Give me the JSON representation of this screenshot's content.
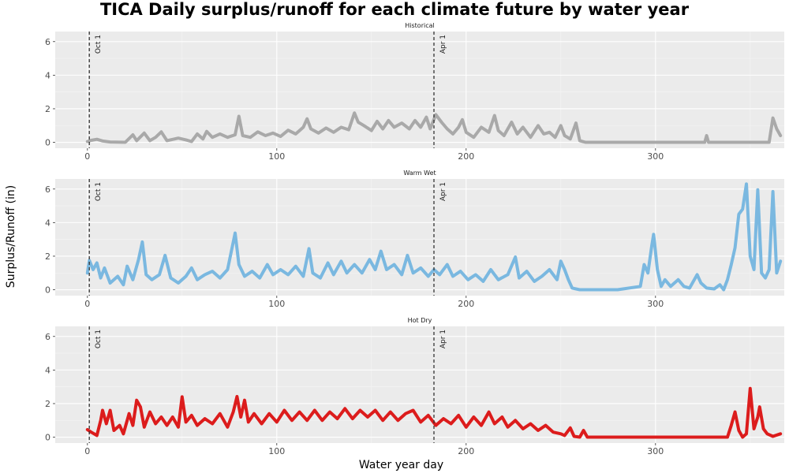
{
  "chart_data": {
    "type": "line",
    "title": "TICA Daily surplus/runoff for each climate future by water year",
    "xlabel": "Water year day",
    "ylabel": "Surplus/Runoff (in)",
    "xlim": [
      -17,
      368
    ],
    "ylim": [
      -0.35,
      6.6
    ],
    "x_ticks": [
      0,
      100,
      200,
      300
    ],
    "y_ticks": [
      0,
      2,
      4,
      6
    ],
    "grid": true,
    "vlines": [
      {
        "x": 1,
        "label": "Oct 1"
      },
      {
        "x": 183,
        "label": "Apr 1"
      }
    ],
    "panels": [
      {
        "name": "Historical",
        "color": "#A9A9A9",
        "points": [
          [
            0,
            0.05
          ],
          [
            2,
            0.12
          ],
          [
            5,
            0.18
          ],
          [
            8,
            0.08
          ],
          [
            12,
            0.02
          ],
          [
            20,
            0
          ],
          [
            24,
            0.45
          ],
          [
            26,
            0.1
          ],
          [
            30,
            0.55
          ],
          [
            33,
            0.1
          ],
          [
            36,
            0.3
          ],
          [
            39,
            0.62
          ],
          [
            42,
            0.1
          ],
          [
            48,
            0.25
          ],
          [
            52,
            0.15
          ],
          [
            55,
            0.05
          ],
          [
            58,
            0.5
          ],
          [
            61,
            0.2
          ],
          [
            63,
            0.65
          ],
          [
            66,
            0.3
          ],
          [
            70,
            0.5
          ],
          [
            74,
            0.3
          ],
          [
            78,
            0.45
          ],
          [
            80,
            1.55
          ],
          [
            82,
            0.4
          ],
          [
            86,
            0.3
          ],
          [
            90,
            0.62
          ],
          [
            94,
            0.4
          ],
          [
            98,
            0.55
          ],
          [
            102,
            0.35
          ],
          [
            106,
            0.72
          ],
          [
            110,
            0.5
          ],
          [
            114,
            0.9
          ],
          [
            116,
            1.4
          ],
          [
            118,
            0.8
          ],
          [
            122,
            0.55
          ],
          [
            126,
            0.85
          ],
          [
            130,
            0.6
          ],
          [
            134,
            0.9
          ],
          [
            138,
            0.75
          ],
          [
            141,
            1.75
          ],
          [
            143,
            1.2
          ],
          [
            146,
            1.0
          ],
          [
            150,
            0.7
          ],
          [
            153,
            1.25
          ],
          [
            156,
            0.8
          ],
          [
            159,
            1.3
          ],
          [
            162,
            0.9
          ],
          [
            166,
            1.15
          ],
          [
            170,
            0.8
          ],
          [
            173,
            1.3
          ],
          [
            176,
            0.9
          ],
          [
            179,
            1.5
          ],
          [
            181,
            0.8
          ],
          [
            184,
            1.65
          ],
          [
            187,
            1.2
          ],
          [
            190,
            0.8
          ],
          [
            193,
            0.5
          ],
          [
            196,
            0.9
          ],
          [
            198,
            1.35
          ],
          [
            200,
            0.6
          ],
          [
            204,
            0.3
          ],
          [
            208,
            0.9
          ],
          [
            212,
            0.6
          ],
          [
            215,
            1.6
          ],
          [
            217,
            0.7
          ],
          [
            220,
            0.4
          ],
          [
            224,
            1.2
          ],
          [
            227,
            0.5
          ],
          [
            230,
            0.9
          ],
          [
            234,
            0.3
          ],
          [
            238,
            1.0
          ],
          [
            241,
            0.5
          ],
          [
            244,
            0.6
          ],
          [
            247,
            0.3
          ],
          [
            250,
            1.0
          ],
          [
            252,
            0.4
          ],
          [
            255,
            0.2
          ],
          [
            258,
            1.15
          ],
          [
            260,
            0.1
          ],
          [
            263,
            0
          ],
          [
            300,
            0
          ],
          [
            326,
            0
          ],
          [
            327,
            0.4
          ],
          [
            328,
            0
          ],
          [
            345,
            0
          ],
          [
            350,
            0
          ],
          [
            360,
            0
          ],
          [
            362,
            1.45
          ],
          [
            364,
            0.8
          ],
          [
            366,
            0.4
          ]
        ]
      },
      {
        "name": "Warm Wet",
        "color": "#7AB8E0",
        "points": [
          [
            0,
            1.0
          ],
          [
            1,
            1.75
          ],
          [
            3,
            1.2
          ],
          [
            5,
            1.6
          ],
          [
            7,
            0.7
          ],
          [
            9,
            1.3
          ],
          [
            12,
            0.4
          ],
          [
            16,
            0.8
          ],
          [
            19,
            0.3
          ],
          [
            21,
            1.4
          ],
          [
            24,
            0.6
          ],
          [
            27,
            1.8
          ],
          [
            29,
            2.85
          ],
          [
            31,
            0.9
          ],
          [
            34,
            0.6
          ],
          [
            38,
            0.9
          ],
          [
            41,
            2.05
          ],
          [
            44,
            0.7
          ],
          [
            48,
            0.4
          ],
          [
            52,
            0.8
          ],
          [
            55,
            1.3
          ],
          [
            58,
            0.6
          ],
          [
            62,
            0.9
          ],
          [
            66,
            1.1
          ],
          [
            70,
            0.7
          ],
          [
            74,
            1.2
          ],
          [
            78,
            3.38
          ],
          [
            80,
            1.5
          ],
          [
            83,
            0.8
          ],
          [
            87,
            1.1
          ],
          [
            91,
            0.7
          ],
          [
            95,
            1.5
          ],
          [
            98,
            0.9
          ],
          [
            102,
            1.2
          ],
          [
            106,
            0.9
          ],
          [
            110,
            1.4
          ],
          [
            114,
            0.8
          ],
          [
            117,
            2.45
          ],
          [
            119,
            1.0
          ],
          [
            123,
            0.7
          ],
          [
            127,
            1.6
          ],
          [
            130,
            0.9
          ],
          [
            134,
            1.7
          ],
          [
            137,
            1.0
          ],
          [
            141,
            1.5
          ],
          [
            145,
            1.0
          ],
          [
            149,
            1.8
          ],
          [
            152,
            1.2
          ],
          [
            155,
            2.3
          ],
          [
            158,
            1.2
          ],
          [
            162,
            1.5
          ],
          [
            166,
            0.9
          ],
          [
            169,
            2.05
          ],
          [
            172,
            1.0
          ],
          [
            176,
            1.3
          ],
          [
            180,
            0.8
          ],
          [
            183,
            1.2
          ],
          [
            186,
            0.9
          ],
          [
            190,
            1.5
          ],
          [
            193,
            0.8
          ],
          [
            197,
            1.1
          ],
          [
            201,
            0.6
          ],
          [
            205,
            0.9
          ],
          [
            209,
            0.5
          ],
          [
            213,
            1.2
          ],
          [
            217,
            0.6
          ],
          [
            222,
            0.9
          ],
          [
            226,
            1.95
          ],
          [
            228,
            0.7
          ],
          [
            232,
            1.1
          ],
          [
            236,
            0.5
          ],
          [
            240,
            0.8
          ],
          [
            244,
            1.2
          ],
          [
            248,
            0.6
          ],
          [
            250,
            1.7
          ],
          [
            252,
            1.2
          ],
          [
            254,
            0.6
          ],
          [
            256,
            0.1
          ],
          [
            260,
            0
          ],
          [
            280,
            0
          ],
          [
            292,
            0.2
          ],
          [
            294,
            1.5
          ],
          [
            296,
            1.0
          ],
          [
            298,
            2.6
          ],
          [
            299,
            3.3
          ],
          [
            301,
            1.2
          ],
          [
            303,
            0.2
          ],
          [
            305,
            0.6
          ],
          [
            308,
            0.2
          ],
          [
            312,
            0.6
          ],
          [
            315,
            0.2
          ],
          [
            318,
            0.1
          ],
          [
            322,
            0.9
          ],
          [
            324,
            0.4
          ],
          [
            327,
            0.1
          ],
          [
            331,
            0.05
          ],
          [
            334,
            0.3
          ],
          [
            336,
            0
          ],
          [
            338,
            0.6
          ],
          [
            340,
            1.5
          ],
          [
            342,
            2.5
          ],
          [
            344,
            4.5
          ],
          [
            346,
            4.8
          ],
          [
            348,
            6.3
          ],
          [
            350,
            2.0
          ],
          [
            352,
            1.2
          ],
          [
            354,
            5.95
          ],
          [
            356,
            1.0
          ],
          [
            358,
            0.7
          ],
          [
            360,
            1.2
          ],
          [
            362,
            5.85
          ],
          [
            364,
            1.0
          ],
          [
            366,
            1.7
          ]
        ]
      },
      {
        "name": "Hot Dry",
        "color": "#DC1C1C",
        "points": [
          [
            0,
            0.45
          ],
          [
            2,
            0.3
          ],
          [
            5,
            0.1
          ],
          [
            7,
            1.0
          ],
          [
            8,
            1.6
          ],
          [
            10,
            0.8
          ],
          [
            12,
            1.6
          ],
          [
            14,
            0.4
          ],
          [
            17,
            0.7
          ],
          [
            19,
            0.2
          ],
          [
            22,
            1.4
          ],
          [
            24,
            0.7
          ],
          [
            26,
            2.2
          ],
          [
            28,
            1.8
          ],
          [
            30,
            0.6
          ],
          [
            33,
            1.5
          ],
          [
            36,
            0.8
          ],
          [
            39,
            1.2
          ],
          [
            42,
            0.7
          ],
          [
            45,
            1.2
          ],
          [
            48,
            0.6
          ],
          [
            50,
            2.4
          ],
          [
            52,
            0.9
          ],
          [
            55,
            1.3
          ],
          [
            58,
            0.7
          ],
          [
            62,
            1.1
          ],
          [
            66,
            0.8
          ],
          [
            70,
            1.4
          ],
          [
            74,
            0.6
          ],
          [
            77,
            1.5
          ],
          [
            79,
            2.42
          ],
          [
            81,
            1.2
          ],
          [
            83,
            2.2
          ],
          [
            85,
            0.9
          ],
          [
            88,
            1.4
          ],
          [
            92,
            0.8
          ],
          [
            96,
            1.4
          ],
          [
            100,
            0.9
          ],
          [
            104,
            1.6
          ],
          [
            108,
            1.0
          ],
          [
            112,
            1.5
          ],
          [
            116,
            1.0
          ],
          [
            120,
            1.6
          ],
          [
            124,
            1.0
          ],
          [
            128,
            1.5
          ],
          [
            132,
            1.1
          ],
          [
            136,
            1.7
          ],
          [
            140,
            1.1
          ],
          [
            144,
            1.6
          ],
          [
            148,
            1.2
          ],
          [
            152,
            1.6
          ],
          [
            156,
            1.0
          ],
          [
            160,
            1.5
          ],
          [
            164,
            1.0
          ],
          [
            168,
            1.4
          ],
          [
            172,
            1.6
          ],
          [
            176,
            0.9
          ],
          [
            180,
            1.3
          ],
          [
            184,
            0.7
          ],
          [
            188,
            1.1
          ],
          [
            192,
            0.8
          ],
          [
            196,
            1.3
          ],
          [
            200,
            0.6
          ],
          [
            204,
            1.2
          ],
          [
            208,
            0.7
          ],
          [
            212,
            1.5
          ],
          [
            215,
            0.8
          ],
          [
            219,
            1.2
          ],
          [
            222,
            0.6
          ],
          [
            226,
            1.0
          ],
          [
            230,
            0.5
          ],
          [
            234,
            0.8
          ],
          [
            238,
            0.4
          ],
          [
            242,
            0.7
          ],
          [
            246,
            0.3
          ],
          [
            250,
            0.2
          ],
          [
            252,
            0.1
          ],
          [
            255,
            0.55
          ],
          [
            257,
            0.05
          ],
          [
            260,
            0
          ],
          [
            262,
            0.4
          ],
          [
            264,
            0
          ],
          [
            300,
            0
          ],
          [
            338,
            0
          ],
          [
            340,
            0.7
          ],
          [
            342,
            1.5
          ],
          [
            344,
            0.4
          ],
          [
            346,
            0
          ],
          [
            348,
            0.2
          ],
          [
            350,
            2.9
          ],
          [
            352,
            0.5
          ],
          [
            354,
            1.2
          ],
          [
            355,
            1.8
          ],
          [
            357,
            0.5
          ],
          [
            359,
            0.2
          ],
          [
            362,
            0.05
          ],
          [
            366,
            0.2
          ]
        ]
      }
    ]
  }
}
